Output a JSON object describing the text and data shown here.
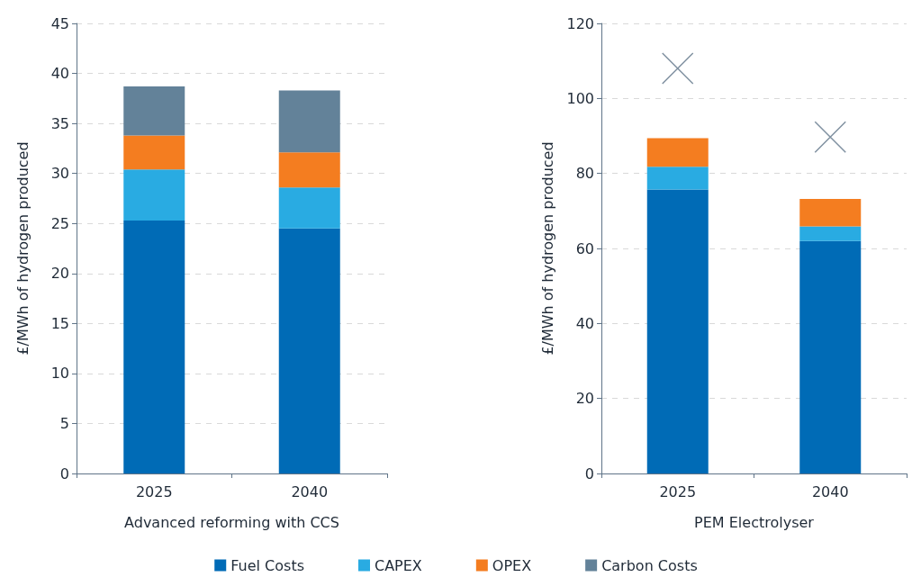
{
  "chart_data": [
    {
      "type": "bar",
      "stacked": true,
      "categories": [
        "2025",
        "2040"
      ],
      "xlabel": "Advanced reforming with CCS",
      "ylabel": "£/MWh of hydrogen produced",
      "ylim": [
        0,
        45
      ],
      "yticks": [
        0,
        5,
        10,
        15,
        20,
        25,
        30,
        35,
        40,
        45
      ],
      "grid": "y",
      "legend": "bottom",
      "series": [
        {
          "name": "Fuel Costs",
          "color": "#006bb6",
          "values": [
            25.3,
            24.5
          ]
        },
        {
          "name": "CAPEX",
          "color": "#29abe2",
          "values": [
            5.1,
            4.1
          ]
        },
        {
          "name": "OPEX",
          "color": "#f47d20",
          "values": [
            3.4,
            3.5
          ]
        },
        {
          "name": "Carbon Costs",
          "color": "#638299",
          "values": [
            4.9,
            6.2
          ]
        }
      ]
    },
    {
      "type": "bar",
      "stacked": true,
      "categories": [
        "2025",
        "2040"
      ],
      "xlabel": "PEM Electrolyser",
      "ylabel": "£/MWh of hydrogen produced",
      "ylim": [
        0,
        120
      ],
      "yticks": [
        0,
        20,
        40,
        60,
        80,
        100,
        120
      ],
      "grid": "y",
      "legend": "bottom",
      "series": [
        {
          "name": "Fuel Costs",
          "color": "#006bb6",
          "values": [
            75.7,
            62
          ]
        },
        {
          "name": "CAPEX",
          "color": "#29abe2",
          "values": [
            6.1,
            3.9
          ]
        },
        {
          "name": "OPEX",
          "color": "#f47d20",
          "values": [
            7.6,
            7.3
          ]
        },
        {
          "type": "scatter",
          "marker": "cross",
          "color": "#5f7488",
          "values": [
            108,
            89.7
          ]
        }
      ]
    }
  ]
}
